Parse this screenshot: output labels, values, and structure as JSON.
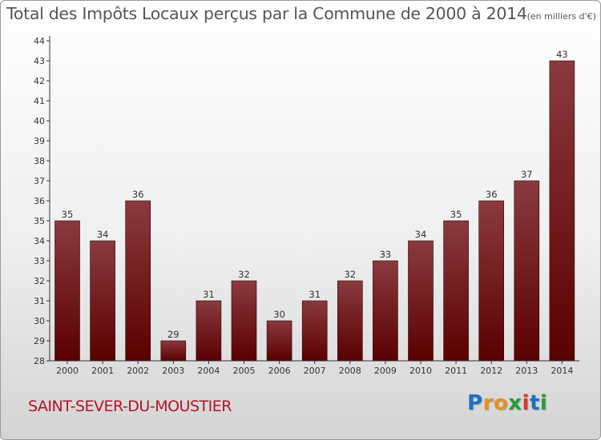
{
  "title": "Total des Impôts Locaux perçus par la Commune de 2000 à 2014",
  "unit": "(en milliers d'€)",
  "commune": "SAINT-SEVER-DU-MOUSTIER",
  "logo": {
    "letters": [
      "P",
      "r",
      "o",
      "x",
      "i",
      "t",
      "i"
    ],
    "colors": [
      "#1e6fc8",
      "#e6921e",
      "#e6921e",
      "#2a9d3a",
      "#d93a2b",
      "#1e6fc8",
      "#2a9d3a"
    ]
  },
  "colors": {
    "bar_top": "#8a3a3e",
    "bar_bottom": "#5a0000",
    "axis": "#333333"
  },
  "chart_data": {
    "type": "bar",
    "categories": [
      "2000",
      "2001",
      "2002",
      "2003",
      "2004",
      "2005",
      "2006",
      "2007",
      "2008",
      "2009",
      "2010",
      "2011",
      "2012",
      "2013",
      "2014"
    ],
    "values": [
      35,
      34,
      36,
      29,
      31,
      32,
      30,
      31,
      32,
      33,
      34,
      35,
      36,
      37,
      43
    ],
    "ylim": [
      28,
      44
    ],
    "yticks": [
      28,
      29,
      30,
      31,
      32,
      33,
      34,
      35,
      36,
      37,
      38,
      39,
      40,
      41,
      42,
      43,
      44
    ],
    "grid": false,
    "data_labels": true
  }
}
